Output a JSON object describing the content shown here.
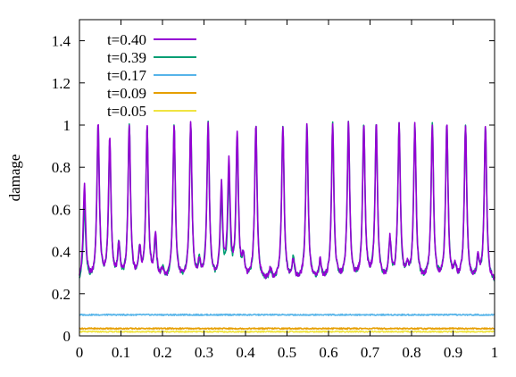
{
  "chart_data": {
    "type": "line",
    "title": "",
    "xlabel": "",
    "ylabel": "damage",
    "xlim": [
      0,
      1
    ],
    "ylim": [
      0,
      1.5
    ],
    "x_ticks": [
      "0",
      "0.1",
      "0.2",
      "0.3",
      "0.4",
      "0.5",
      "0.6",
      "0.7",
      "0.8",
      "0.9",
      "1"
    ],
    "x_tick_values": [
      0,
      0.1,
      0.2,
      0.3,
      0.4,
      0.5,
      0.6,
      0.7,
      0.8,
      0.9,
      1.0
    ],
    "y_ticks": [
      "0",
      "0.2",
      "0.4",
      "0.6",
      "0.8",
      "1",
      "1.2",
      "1.4"
    ],
    "y_tick_values": [
      0,
      0.2,
      0.4,
      0.6,
      0.8,
      1.0,
      1.2,
      1.4
    ],
    "grid": false,
    "legend_position": "top-left",
    "series": [
      {
        "name": "t=0.40",
        "color": "#9400d3",
        "baseline": 0.25,
        "peaks": [
          [
            0.012,
            0.71
          ],
          [
            0.045,
            0.99
          ],
          [
            0.073,
            0.93
          ],
          [
            0.095,
            0.41
          ],
          [
            0.12,
            0.99
          ],
          [
            0.145,
            0.39
          ],
          [
            0.163,
            0.98
          ],
          [
            0.183,
            0.46
          ],
          [
            0.2,
            0.3
          ],
          [
            0.228,
            0.99
          ],
          [
            0.268,
            0.99
          ],
          [
            0.289,
            0.33
          ],
          [
            0.31,
            0.99
          ],
          [
            0.342,
            0.69
          ],
          [
            0.36,
            0.81
          ],
          [
            0.38,
            0.94
          ],
          [
            0.395,
            0.35
          ],
          [
            0.425,
            0.99
          ],
          [
            0.46,
            0.3
          ],
          [
            0.49,
            0.99
          ],
          [
            0.515,
            0.35
          ],
          [
            0.548,
            0.99
          ],
          [
            0.58,
            0.34
          ],
          [
            0.61,
            0.99
          ],
          [
            0.648,
            0.99
          ],
          [
            0.685,
            0.99
          ],
          [
            0.715,
            0.99
          ],
          [
            0.748,
            0.44
          ],
          [
            0.77,
            0.99
          ],
          [
            0.79,
            0.3
          ],
          [
            0.808,
            0.99
          ],
          [
            0.85,
            0.99
          ],
          [
            0.885,
            0.99
          ],
          [
            0.905,
            0.31
          ],
          [
            0.93,
            0.99
          ],
          [
            0.96,
            0.35
          ],
          [
            0.978,
            0.99
          ]
        ]
      },
      {
        "name": "t=0.39",
        "color": "#009e73",
        "baseline": 0.25,
        "peaks": [
          [
            0.012,
            0.61
          ],
          [
            0.045,
            0.99
          ],
          [
            0.073,
            0.9
          ],
          [
            0.095,
            0.41
          ],
          [
            0.12,
            0.99
          ],
          [
            0.145,
            0.39
          ],
          [
            0.163,
            0.97
          ],
          [
            0.183,
            0.44
          ],
          [
            0.2,
            0.3
          ],
          [
            0.228,
            0.99
          ],
          [
            0.268,
            0.99
          ],
          [
            0.289,
            0.33
          ],
          [
            0.31,
            0.99
          ],
          [
            0.342,
            0.63
          ],
          [
            0.36,
            0.73
          ],
          [
            0.38,
            0.91
          ],
          [
            0.395,
            0.35
          ],
          [
            0.425,
            0.99
          ],
          [
            0.46,
            0.3
          ],
          [
            0.49,
            0.99
          ],
          [
            0.515,
            0.35
          ],
          [
            0.548,
            0.99
          ],
          [
            0.58,
            0.34
          ],
          [
            0.61,
            0.99
          ],
          [
            0.648,
            0.99
          ],
          [
            0.685,
            0.99
          ],
          [
            0.715,
            0.99
          ],
          [
            0.748,
            0.44
          ],
          [
            0.77,
            0.99
          ],
          [
            0.79,
            0.3
          ],
          [
            0.808,
            0.99
          ],
          [
            0.85,
            0.99
          ],
          [
            0.885,
            0.99
          ],
          [
            0.905,
            0.31
          ],
          [
            0.93,
            0.99
          ],
          [
            0.96,
            0.35
          ],
          [
            0.978,
            0.99
          ]
        ]
      },
      {
        "name": "t=0.17",
        "color": "#56b4e9",
        "baseline": 0.1,
        "peaks": []
      },
      {
        "name": "t=0.09",
        "color": "#e69f00",
        "baseline": 0.035,
        "peaks": []
      },
      {
        "name": "t=0.05",
        "color": "#f0e442",
        "baseline": 0.02,
        "peaks": []
      }
    ]
  }
}
